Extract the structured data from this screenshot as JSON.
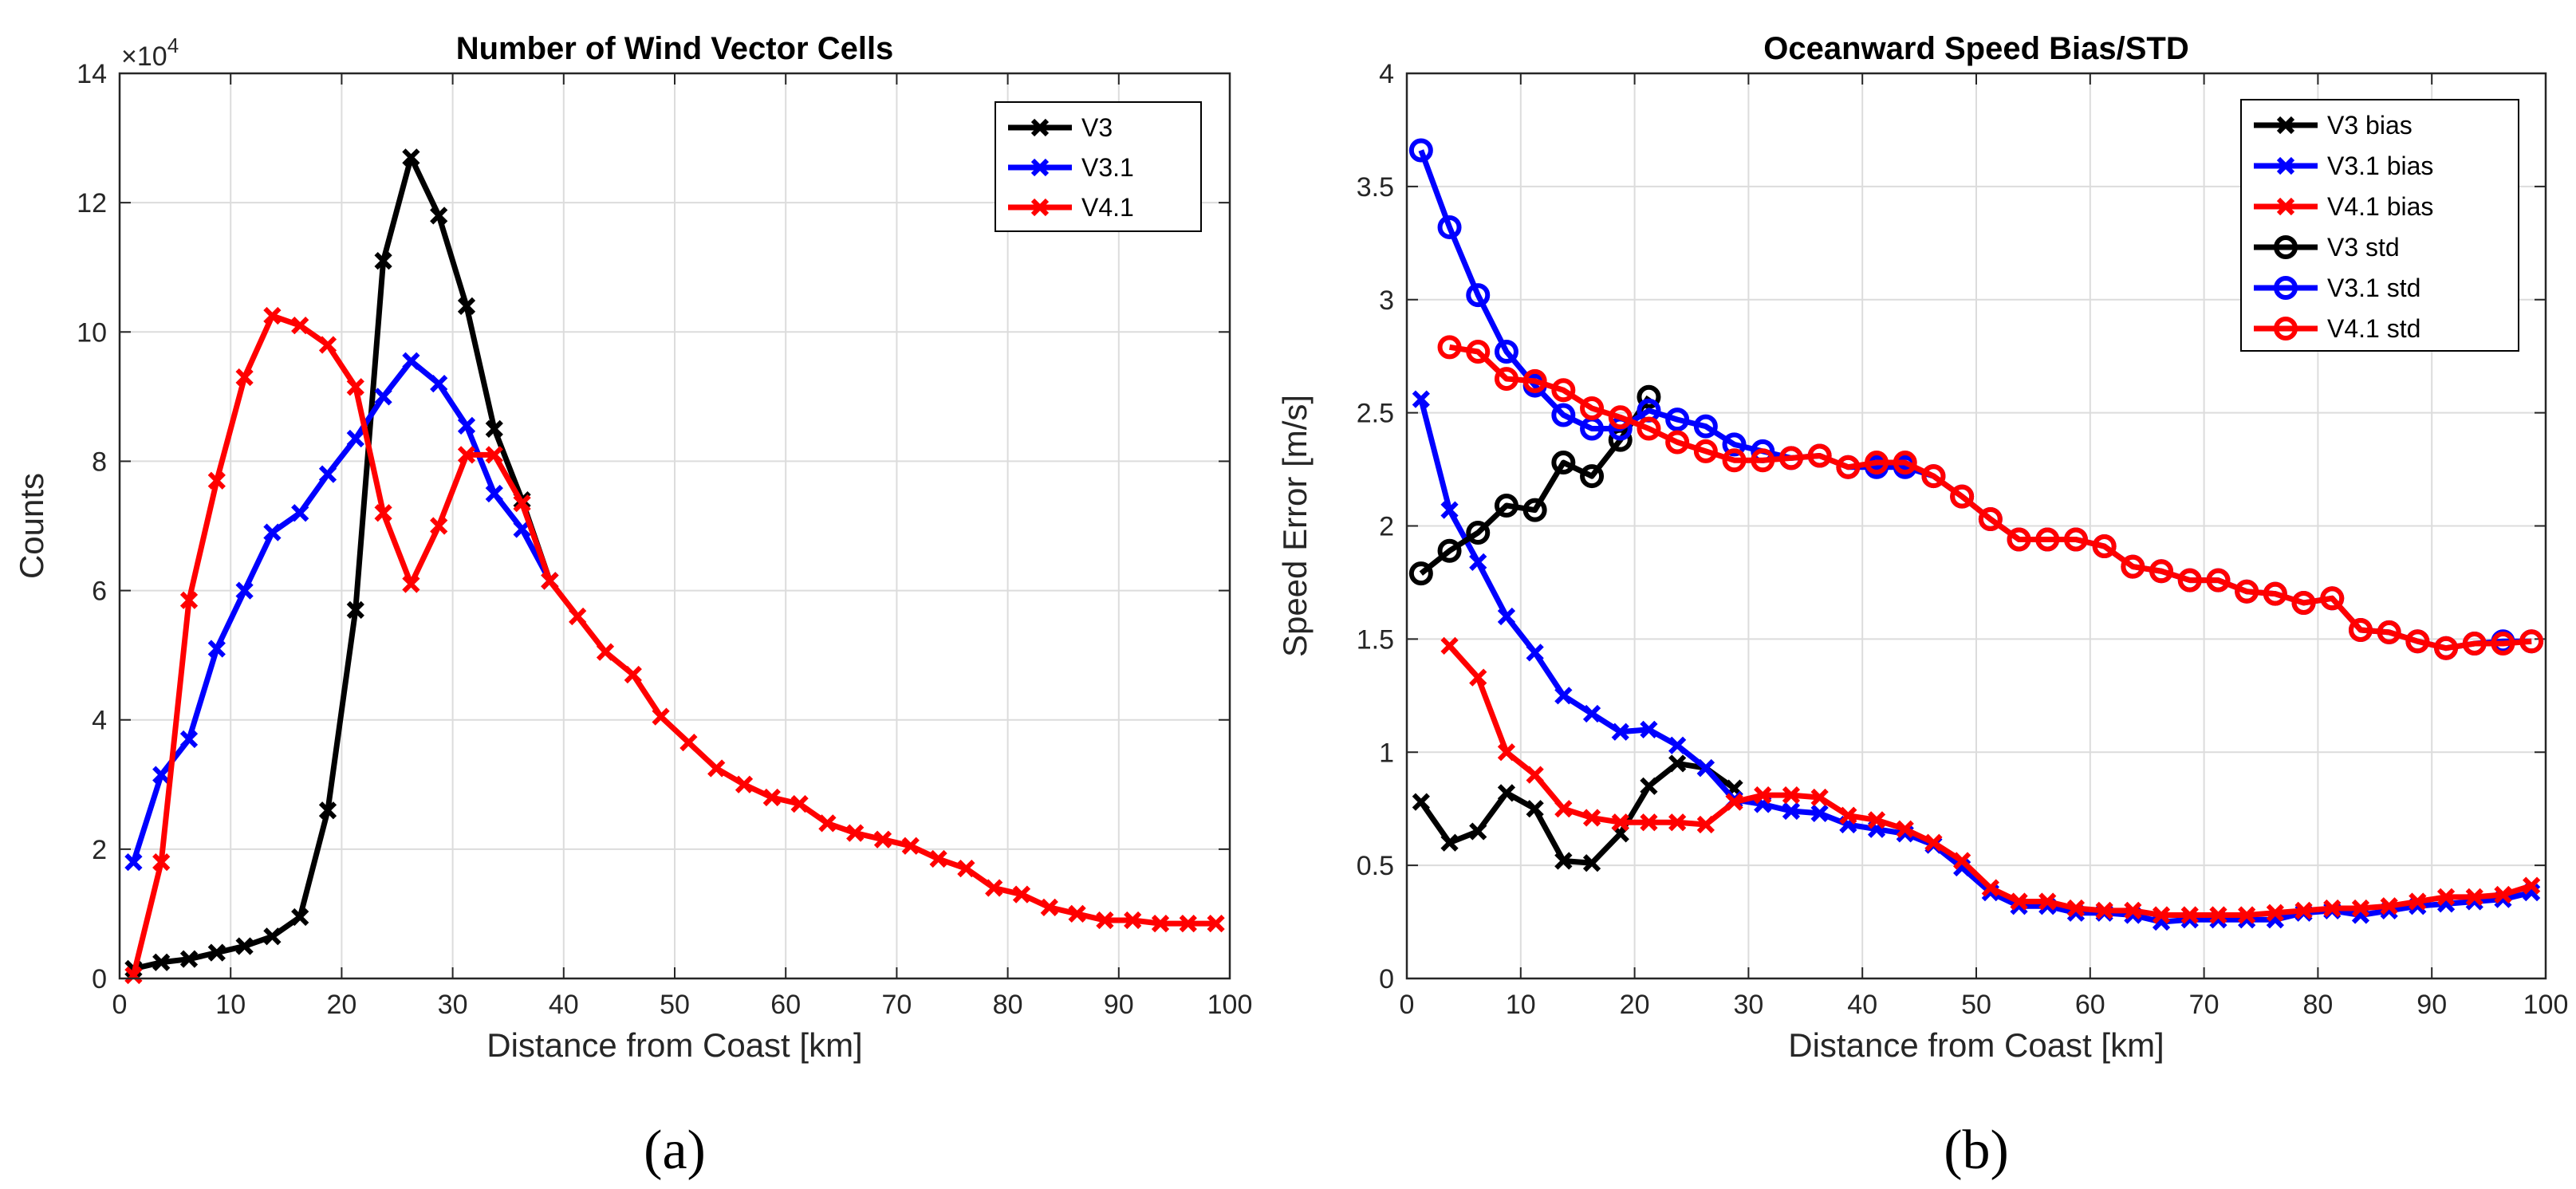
{
  "colors": {
    "V3": "#000000",
    "V3.1": "#0000ff",
    "V4.1": "#ff0000",
    "grid": "#dcdcdc",
    "axis": "#262626"
  },
  "chart_data": [
    {
      "type": "line",
      "id": "a",
      "panel_label": "(a)",
      "title": "Number of Wind Vector Cells",
      "xlabel": "Distance from Coast [km]",
      "ylabel": "Counts",
      "y_exponent_base": "×10",
      "y_exponent_power": "4",
      "xlim": [
        0,
        100
      ],
      "ylim": [
        0,
        14
      ],
      "xticks": [
        0,
        10,
        20,
        30,
        40,
        50,
        60,
        70,
        80,
        90,
        100
      ],
      "yticks": [
        0,
        2,
        4,
        6,
        8,
        10,
        12,
        14
      ],
      "grid": true,
      "legend_position": "top-right",
      "series": [
        {
          "name": "V3",
          "color_key": "V3",
          "marker": "x",
          "x": [
            1.25,
            3.75,
            6.25,
            8.75,
            11.25,
            13.75,
            16.25,
            18.75,
            21.25,
            23.75,
            26.25,
            28.75,
            31.25,
            33.75,
            36.25,
            38.75
          ],
          "values": [
            0.15,
            0.25,
            0.3,
            0.4,
            0.5,
            0.65,
            0.95,
            2.6,
            5.7,
            11.1,
            12.7,
            11.8,
            10.4,
            8.5,
            7.4,
            6.15
          ]
        },
        {
          "name": "V3.1",
          "color_key": "V3.1",
          "marker": "x",
          "x": [
            1.25,
            3.75,
            6.25,
            8.75,
            11.25,
            13.75,
            16.25,
            18.75,
            21.25,
            23.75,
            26.25,
            28.75,
            31.25,
            33.75,
            36.25,
            38.75
          ],
          "values": [
            1.8,
            3.15,
            3.7,
            5.1,
            6.0,
            6.9,
            7.2,
            7.8,
            8.35,
            9.0,
            9.55,
            9.2,
            8.55,
            7.5,
            6.95,
            6.15
          ]
        },
        {
          "name": "V4.1",
          "color_key": "V4.1",
          "marker": "x",
          "x": [
            1.25,
            3.75,
            6.25,
            8.75,
            11.25,
            13.75,
            16.25,
            18.75,
            21.25,
            23.75,
            26.25,
            28.75,
            31.25,
            33.75,
            36.25,
            38.75,
            41.25,
            43.75,
            46.25,
            48.75,
            51.25,
            53.75,
            56.25,
            58.75,
            61.25,
            63.75,
            66.25,
            68.75,
            71.25,
            73.75,
            76.25,
            78.75,
            81.25,
            83.75,
            86.25,
            88.75,
            91.25,
            93.75,
            96.25,
            98.75
          ],
          "values": [
            0.05,
            1.8,
            5.85,
            7.7,
            9.3,
            10.25,
            10.1,
            9.8,
            9.15,
            7.2,
            6.1,
            7.0,
            8.1,
            8.1,
            7.35,
            6.15,
            5.6,
            5.05,
            4.7,
            4.05,
            3.65,
            3.25,
            3.0,
            2.8,
            2.7,
            2.4,
            2.25,
            2.15,
            2.05,
            1.85,
            1.7,
            1.4,
            1.3,
            1.1,
            1.0,
            0.9,
            0.9,
            0.85,
            0.85,
            0.85
          ]
        }
      ]
    },
    {
      "type": "line",
      "id": "b",
      "panel_label": "(b)",
      "title": "Oceanward Speed Bias/STD",
      "xlabel": "Distance from Coast [km]",
      "ylabel": "Speed Error [m/s]",
      "xlim": [
        0,
        100
      ],
      "ylim": [
        0,
        4
      ],
      "xticks": [
        0,
        10,
        20,
        30,
        40,
        50,
        60,
        70,
        80,
        90,
        100
      ],
      "yticks": [
        0,
        0.5,
        1,
        1.5,
        2,
        2.5,
        3,
        3.5,
        4
      ],
      "grid": true,
      "legend_position": "top-right",
      "series": [
        {
          "name": "V3 bias",
          "color_key": "V3",
          "marker": "x",
          "x": [
            1.25,
            3.75,
            6.25,
            8.75,
            11.25,
            13.75,
            16.25,
            18.75,
            21.25,
            23.75,
            26.25,
            28.75
          ],
          "values": [
            0.78,
            0.6,
            0.65,
            0.82,
            0.75,
            0.52,
            0.51,
            0.64,
            0.85,
            0.95,
            0.93,
            0.84
          ]
        },
        {
          "name": "V3.1 bias",
          "color_key": "V3.1",
          "marker": "x",
          "x": [
            1.25,
            3.75,
            6.25,
            8.75,
            11.25,
            13.75,
            16.25,
            18.75,
            21.25,
            23.75,
            26.25,
            28.75,
            31.25,
            33.75,
            36.25,
            38.75,
            41.25,
            43.75,
            46.25,
            48.75,
            51.25,
            53.75,
            56.25,
            58.75,
            61.25,
            63.75,
            66.25,
            68.75,
            71.25,
            73.75,
            76.25,
            78.75,
            81.25,
            83.75,
            86.25,
            88.75,
            91.25,
            93.75,
            96.25,
            98.75
          ],
          "values": [
            2.56,
            2.07,
            1.84,
            1.6,
            1.44,
            1.25,
            1.17,
            1.09,
            1.1,
            1.03,
            0.93,
            0.79,
            0.77,
            0.74,
            0.73,
            0.68,
            0.66,
            0.64,
            0.59,
            0.49,
            0.38,
            0.32,
            0.32,
            0.29,
            0.29,
            0.28,
            0.25,
            0.26,
            0.26,
            0.26,
            0.26,
            0.29,
            0.3,
            0.28,
            0.3,
            0.32,
            0.33,
            0.34,
            0.35,
            0.38
          ]
        },
        {
          "name": "V4.1 bias",
          "color_key": "V4.1",
          "marker": "x",
          "x": [
            3.75,
            6.25,
            8.75,
            11.25,
            13.75,
            16.25,
            18.75,
            21.25,
            23.75,
            26.25,
            28.75,
            31.25,
            33.75,
            36.25,
            38.75,
            41.25,
            43.75,
            46.25,
            48.75,
            51.25,
            53.75,
            56.25,
            58.75,
            61.25,
            63.75,
            66.25,
            68.75,
            71.25,
            73.75,
            76.25,
            78.75,
            81.25,
            83.75,
            86.25,
            88.75,
            91.25,
            93.75,
            96.25,
            98.75
          ],
          "values": [
            1.47,
            1.33,
            1.0,
            0.9,
            0.75,
            0.71,
            0.69,
            0.69,
            0.69,
            0.68,
            0.78,
            0.81,
            0.81,
            0.8,
            0.72,
            0.7,
            0.66,
            0.6,
            0.52,
            0.4,
            0.34,
            0.34,
            0.31,
            0.3,
            0.3,
            0.28,
            0.28,
            0.28,
            0.28,
            0.29,
            0.3,
            0.31,
            0.31,
            0.32,
            0.34,
            0.36,
            0.36,
            0.37,
            0.41
          ]
        },
        {
          "name": "V3 std",
          "color_key": "V3",
          "marker": "o",
          "x": [
            1.25,
            3.75,
            6.25,
            8.75,
            11.25,
            13.75,
            16.25,
            18.75,
            21.25
          ],
          "values": [
            1.79,
            1.89,
            1.97,
            2.09,
            2.07,
            2.28,
            2.22,
            2.38,
            2.57
          ]
        },
        {
          "name": "V3.1 std",
          "color_key": "V3.1",
          "marker": "o",
          "x": [
            1.25,
            3.75,
            6.25,
            8.75,
            11.25,
            13.75,
            16.25,
            18.75,
            21.25,
            23.75,
            26.25,
            28.75,
            31.25,
            33.75,
            36.25,
            38.75,
            41.25,
            43.75,
            46.25,
            48.75,
            51.25,
            53.75,
            56.25,
            58.75,
            61.25,
            63.75,
            66.25,
            68.75,
            71.25,
            73.75,
            76.25,
            78.75,
            81.25,
            83.75,
            86.25,
            88.75,
            91.25,
            93.75,
            96.25,
            98.75
          ],
          "values": [
            3.66,
            3.32,
            3.02,
            2.77,
            2.62,
            2.49,
            2.43,
            2.43,
            2.51,
            2.47,
            2.44,
            2.36,
            2.33,
            2.3,
            2.31,
            2.26,
            2.26,
            2.26,
            2.22,
            2.13,
            2.03,
            1.94,
            1.94,
            1.94,
            1.91,
            1.82,
            1.8,
            1.76,
            1.76,
            1.71,
            1.7,
            1.66,
            1.68,
            1.54,
            1.53,
            1.49,
            1.46,
            1.48,
            1.49,
            1.49
          ]
        },
        {
          "name": "V4.1 std",
          "color_key": "V4.1",
          "marker": "o",
          "x": [
            3.75,
            6.25,
            8.75,
            11.25,
            13.75,
            16.25,
            18.75,
            21.25,
            23.75,
            26.25,
            28.75,
            31.25,
            33.75,
            36.25,
            38.75,
            41.25,
            43.75,
            46.25,
            48.75,
            51.25,
            53.75,
            56.25,
            58.75,
            61.25,
            63.75,
            66.25,
            68.75,
            71.25,
            73.75,
            76.25,
            78.75,
            81.25,
            83.75,
            86.25,
            88.75,
            91.25,
            93.75,
            96.25,
            98.75
          ],
          "values": [
            2.79,
            2.77,
            2.65,
            2.64,
            2.6,
            2.52,
            2.48,
            2.43,
            2.37,
            2.33,
            2.29,
            2.29,
            2.3,
            2.31,
            2.26,
            2.28,
            2.28,
            2.22,
            2.13,
            2.03,
            1.94,
            1.94,
            1.94,
            1.91,
            1.82,
            1.8,
            1.76,
            1.76,
            1.71,
            1.7,
            1.66,
            1.68,
            1.54,
            1.53,
            1.49,
            1.46,
            1.48,
            1.48,
            1.49
          ]
        }
      ]
    }
  ]
}
